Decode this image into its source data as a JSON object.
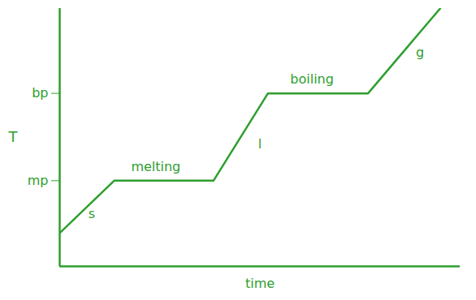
{
  "chart_data": {
    "type": "line",
    "x_label": "time",
    "y_label": "T",
    "x": [
      0,
      68,
      192,
      260,
      385,
      475
    ],
    "values": [
      40,
      103,
      103,
      208,
      208,
      310
    ],
    "color": "#2e9e2e",
    "xlim": [
      0,
      500
    ],
    "ylim": [
      0,
      310
    ],
    "xticks": [],
    "yticks": [
      {
        "value": 103,
        "label": "mp"
      },
      {
        "value": 208,
        "label": "bp"
      }
    ],
    "tick_labels": "y",
    "grid": false,
    "annotations": [
      {
        "text": "s",
        "x": 40,
        "y": 63
      },
      {
        "text": "melting",
        "x": 120,
        "y": 120
      },
      {
        "text": "l",
        "x": 250,
        "y": 147
      },
      {
        "text": "boiling",
        "x": 315,
        "y": 225
      },
      {
        "text": "g",
        "x": 450,
        "y": 257
      }
    ]
  }
}
